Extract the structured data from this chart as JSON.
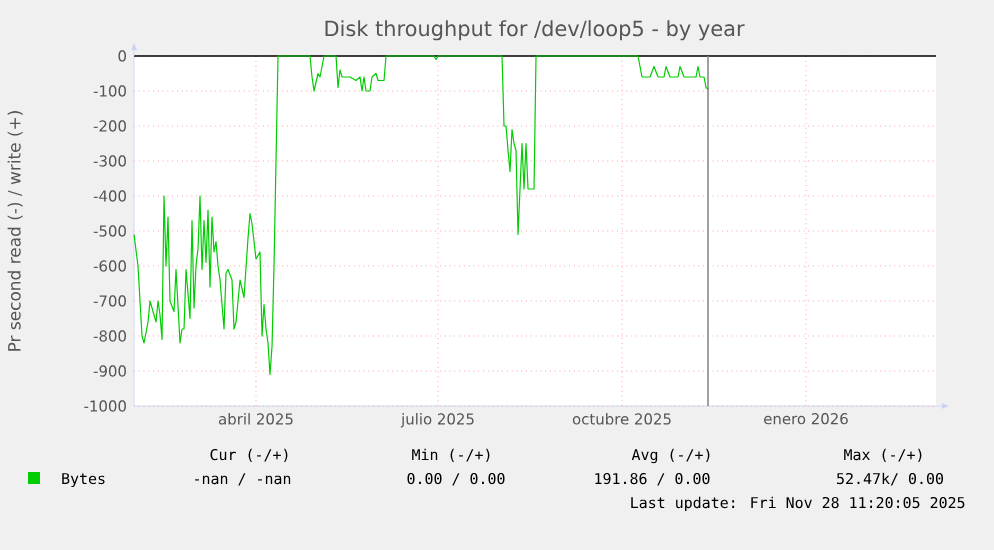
{
  "chart_data": {
    "type": "line",
    "title": "Disk throughput for /dev/loop5 - by year",
    "ylabel": "Pr second read (-) / write (+)",
    "xlim": [
      "2025-02-14",
      "2026-03-22"
    ],
    "xticks": [
      {
        "value": "2025-04-16",
        "label": "abril 2025"
      },
      {
        "value": "2025-07-16",
        "label": "julio 2025"
      },
      {
        "value": "2025-10-16",
        "label": "octubre 2025"
      },
      {
        "value": "2026-01-16",
        "label": "enero 2026"
      }
    ],
    "ylim": [
      -1000,
      0
    ],
    "yticks": [
      0,
      -100,
      -200,
      -300,
      -400,
      -500,
      -600,
      -700,
      -800,
      -900,
      -1000
    ],
    "grid": true,
    "legend": "bottom",
    "ref_lines": [
      {
        "axis": "x",
        "value": "2025-11-28",
        "color": "#888888"
      }
    ],
    "annotations": [
      "Cur (-/+)",
      "Min (-/+)",
      "Avg (-/+)",
      "Max (-/+)",
      "-nan /  -nan",
      "0.00 /  0.00",
      "191.86 /  0.00",
      "52.47k/  0.00",
      "Last update: Fri Nov 28 11:20:05 2025"
    ],
    "series": [
      {
        "name": "Bytes",
        "color": "#00cc00",
        "x": [
          "2025-02-14",
          "2025-02-16",
          "2025-02-18",
          "2025-02-19",
          "2025-02-21",
          "2025-02-22",
          "2025-02-24",
          "2025-02-25",
          "2025-02-26",
          "2025-02-27",
          "2025-02-28",
          "2025-03-01",
          "2025-03-02",
          "2025-03-03",
          "2025-03-04",
          "2025-03-06",
          "2025-03-07",
          "2025-03-09",
          "2025-03-10",
          "2025-03-11",
          "2025-03-12",
          "2025-03-14",
          "2025-03-15",
          "2025-03-16",
          "2025-03-17",
          "2025-03-18",
          "2025-03-19",
          "2025-03-20",
          "2025-03-21",
          "2025-03-22",
          "2025-03-23",
          "2025-03-24",
          "2025-03-25",
          "2025-03-26",
          "2025-03-27",
          "2025-03-28",
          "2025-03-29",
          "2025-03-31",
          "2025-04-01",
          "2025-04-02",
          "2025-04-04",
          "2025-04-05",
          "2025-04-06",
          "2025-04-08",
          "2025-04-10",
          "2025-04-12",
          "2025-04-13",
          "2025-04-14",
          "2025-04-16",
          "2025-04-18",
          "2025-04-19",
          "2025-04-20",
          "2025-04-21",
          "2025-04-22",
          "2025-04-23",
          "2025-04-24",
          "2025-04-25",
          "2025-04-26",
          "2025-04-27",
          "2025-05-13",
          "2025-05-14",
          "2025-05-15",
          "2025-05-17",
          "2025-05-18",
          "2025-05-19",
          "2025-05-20",
          "2025-05-26",
          "2025-05-27",
          "2025-05-28",
          "2025-05-29",
          "2025-06-02",
          "2025-06-05",
          "2025-06-07",
          "2025-06-08",
          "2025-06-09",
          "2025-06-10",
          "2025-06-12",
          "2025-06-13",
          "2025-06-15",
          "2025-06-16",
          "2025-06-19",
          "2025-06-20",
          "2025-07-14",
          "2025-07-15",
          "2025-07-16",
          "2025-08-17",
          "2025-08-18",
          "2025-08-19",
          "2025-08-20",
          "2025-08-21",
          "2025-08-22",
          "2025-08-23",
          "2025-08-24",
          "2025-08-25",
          "2025-08-26",
          "2025-08-27",
          "2025-08-28",
          "2025-08-29",
          "2025-08-30",
          "2025-09-02",
          "2025-09-03",
          "2025-10-24",
          "2025-10-26",
          "2025-10-30",
          "2025-11-01",
          "2025-11-03",
          "2025-11-06",
          "2025-11-07",
          "2025-11-09",
          "2025-11-13",
          "2025-11-14",
          "2025-11-16",
          "2025-11-22",
          "2025-11-23",
          "2025-11-24",
          "2025-11-26",
          "2025-11-27",
          "2025-11-28"
        ],
        "values": [
          -510,
          -600,
          -800,
          -820,
          -760,
          -700,
          -740,
          -760,
          -700,
          -740,
          -810,
          -400,
          -600,
          -460,
          -700,
          -730,
          -610,
          -820,
          -780,
          -780,
          -610,
          -750,
          -470,
          -720,
          -600,
          -550,
          -400,
          -610,
          -470,
          -590,
          -440,
          -660,
          -460,
          -560,
          -530,
          -600,
          -640,
          -780,
          -620,
          -610,
          -640,
          -780,
          -760,
          -640,
          -690,
          -520,
          -450,
          -480,
          -580,
          -560,
          -800,
          -710,
          -780,
          -820,
          -910,
          -830,
          -600,
          -300,
          0,
          0,
          -60,
          -100,
          -50,
          -60,
          -30,
          0,
          0,
          -90,
          -40,
          -60,
          -60,
          -70,
          -60,
          -100,
          -60,
          -100,
          -100,
          -60,
          -50,
          -70,
          -70,
          0,
          0,
          -10,
          0,
          0,
          -200,
          -200,
          -270,
          -330,
          -210,
          -250,
          -270,
          -510,
          -380,
          -250,
          -380,
          -250,
          -380,
          -380,
          0,
          0,
          -60,
          -60,
          -30,
          -60,
          -60,
          -30,
          -60,
          -60,
          -30,
          -60,
          -60,
          -30,
          -60,
          -60,
          -90,
          -95
        ]
      }
    ]
  }
}
